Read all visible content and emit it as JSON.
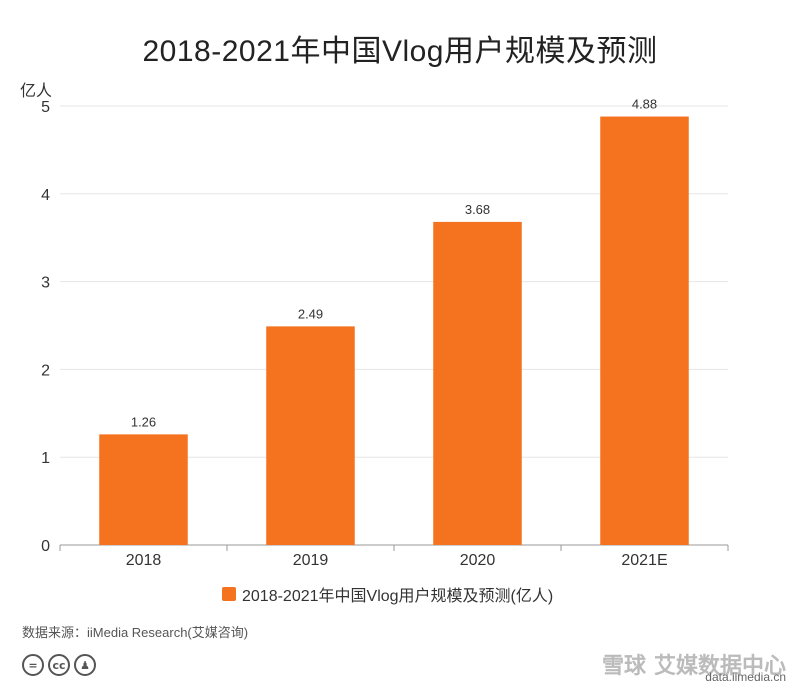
{
  "chart_data": {
    "type": "bar",
    "title": "2018-2021年中国Vlog用户规模及预测",
    "ylabel": "亿人",
    "xlabel": "",
    "categories": [
      "2018",
      "2019",
      "2020",
      "2021E"
    ],
    "series": [
      {
        "name": "2018-2021年中国Vlog用户规模及预测(亿人)",
        "values": [
          1.26,
          2.49,
          3.68,
          4.88
        ]
      }
    ],
    "value_labels": [
      "1.26",
      "2.49",
      "3.68",
      "4.88"
    ],
    "ylim": [
      0,
      5
    ],
    "yticks": [
      "0",
      "1",
      "2",
      "3",
      "4",
      "5"
    ],
    "grid": true,
    "legend_position": "bottom",
    "bar_color": "#F5721E"
  },
  "source": "数据来源：iiMedia Research(艾媒咨询)",
  "license_icons": [
    "equals-icon",
    "cc-icon",
    "person-icon"
  ],
  "watermark": {
    "logo": "雪球",
    "brand": "艾媒数据中心",
    "url": "data.iimedia.cn"
  }
}
